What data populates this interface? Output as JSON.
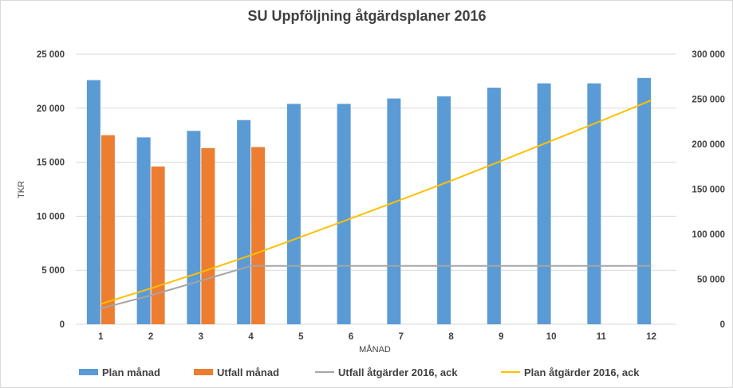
{
  "chart_data": {
    "type": "bar",
    "title": "SU Uppföljning åtgärdsplaner 2016",
    "xlabel": "MÅNAD",
    "ylabel": "TKR",
    "categories": [
      "1",
      "2",
      "3",
      "4",
      "5",
      "6",
      "7",
      "8",
      "9",
      "10",
      "11",
      "12"
    ],
    "ylim": [
      0,
      25000
    ],
    "y2lim": [
      0,
      300000
    ],
    "yticks": [
      "0",
      "5 000",
      "10 000",
      "15 000",
      "20 000",
      "25 000"
    ],
    "y2ticks": [
      "0",
      "50 000",
      "100 000",
      "150 000",
      "200 000",
      "250 000",
      "300 000"
    ],
    "grid": true,
    "legend_position": "bottom",
    "series": [
      {
        "name": "Plan månad",
        "type": "bar",
        "axis": "left",
        "color": "#5b9bd5",
        "values": [
          22600,
          17300,
          17900,
          18900,
          20400,
          20400,
          20900,
          21100,
          21900,
          22300,
          22300,
          22800
        ]
      },
      {
        "name": "Utfall månad",
        "type": "bar",
        "axis": "left",
        "color": "#ed7d31",
        "values": [
          17500,
          14600,
          16300,
          16400,
          null,
          null,
          null,
          null,
          null,
          null,
          null,
          null
        ]
      },
      {
        "name": "Utfall åtgärder 2016, ack",
        "type": "line",
        "axis": "right",
        "color": "#a5a5a5",
        "values": [
          17500,
          32100,
          48400,
          64800,
          64800,
          64800,
          64800,
          64800,
          64800,
          64800,
          64800,
          64800
        ]
      },
      {
        "name": "Plan åtgärder 2016, ack",
        "type": "line",
        "axis": "right",
        "color": "#ffc000",
        "values": [
          22600,
          39900,
          57800,
          76700,
          97100,
          117500,
          138400,
          159500,
          181400,
          203700,
          226000,
          248800
        ]
      }
    ]
  }
}
